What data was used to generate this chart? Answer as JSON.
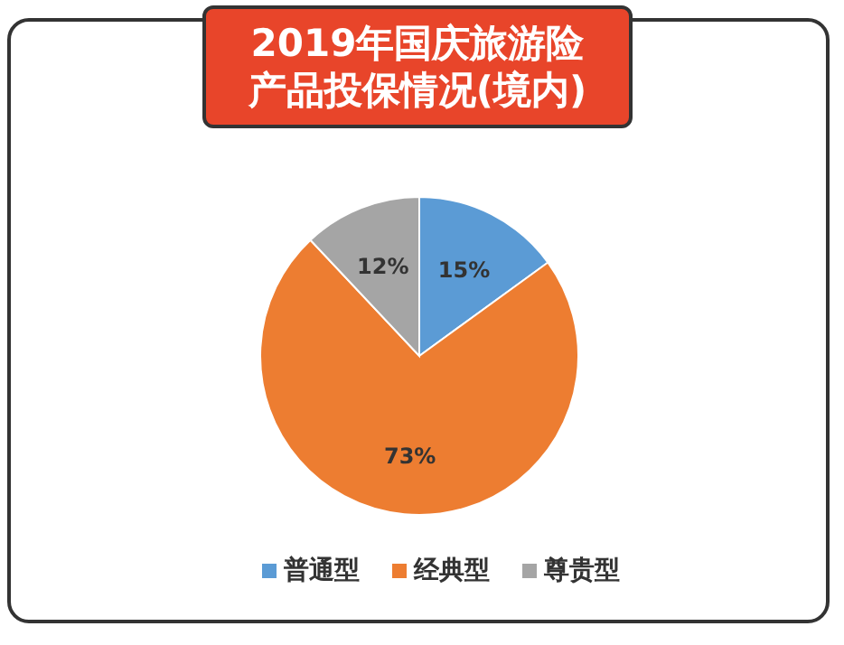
{
  "chart_data": {
    "type": "pie",
    "title": "2019年国庆旅游险产品投保情况(境内)",
    "categories": [
      "普通型",
      "经典型",
      "尊贵型"
    ],
    "values": [
      15,
      73,
      12
    ],
    "colors": [
      "#5b9bd5",
      "#ed7d31",
      "#a5a5a5"
    ],
    "value_labels": [
      "15%",
      "73%",
      "12%"
    ],
    "legend": "bottom"
  }
}
